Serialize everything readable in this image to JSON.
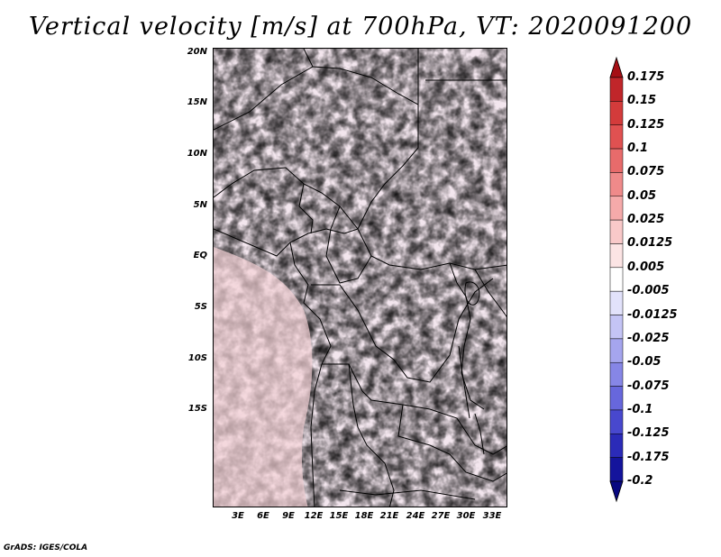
{
  "title": "Vertical velocity [m/s] at 700hPa, VT: 2020091200",
  "credit": "GrADS: IGES/COLA",
  "map": {
    "lat_labels": [
      "20N",
      "15N",
      "10N",
      "5N",
      "EQ",
      "5S",
      "10S",
      "15S"
    ],
    "lat_values": [
      20,
      15,
      10,
      5,
      0,
      -5,
      -10,
      -15
    ],
    "lon_labels": [
      "3E",
      "6E",
      "9E",
      "12E",
      "15E",
      "18E",
      "21E",
      "24E",
      "27E",
      "30E",
      "33E"
    ],
    "lon_values": [
      3,
      6,
      9,
      12,
      15,
      18,
      21,
      24,
      27,
      30,
      33
    ],
    "lat_range": [
      -20,
      25
    ],
    "lon_range": [
      0.5,
      35
    ]
  },
  "colorbar": {
    "levels": [
      "0.175",
      "0.15",
      "0.125",
      "0.1",
      "0.075",
      "0.05",
      "0.025",
      "0.0125",
      "0.005",
      "-0.005",
      "-0.0125",
      "-0.025",
      "-0.05",
      "-0.075",
      "-0.1",
      "-0.125",
      "-0.175",
      "-0.2"
    ],
    "colors": [
      "#a50f15",
      "#c0262a",
      "#d33b3b",
      "#e05151",
      "#e86b6b",
      "#ef8a8a",
      "#f5aaaa",
      "#f9c9c9",
      "#fce4e4",
      "#ffffff",
      "#e2e2fb",
      "#c4c4f5",
      "#a5a5ee",
      "#8686e6",
      "#6767dc",
      "#4848ce",
      "#2b2bb8",
      "#14149c",
      "#080880"
    ]
  }
}
